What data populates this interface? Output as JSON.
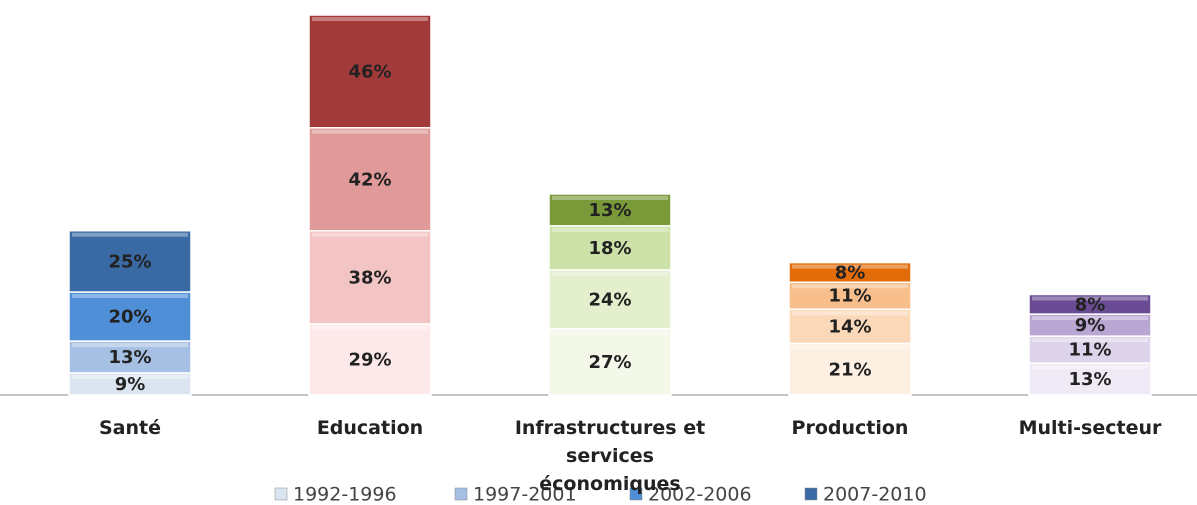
{
  "chart_data": {
    "type": "stacked-bar",
    "categories": [
      "Santé",
      "Education",
      "Infrastructures et services économiques",
      "Production",
      "Multi-secteur"
    ],
    "series": [
      {
        "name": "1992-1996",
        "color": "#dbe5f1",
        "colors": [
          "#dbe5f1",
          "#fde9e9",
          "#f3f8e8",
          "#fdf0e2",
          "#efeaf5"
        ],
        "values": [
          9,
          29,
          27,
          21,
          13
        ],
        "value_labels": [
          "9%",
          "29%",
          "27%",
          "21%",
          "13%"
        ]
      },
      {
        "name": "1997-2001",
        "color": "#a6c0e4",
        "colors": [
          "#a6c0e4",
          "#f2c4c4",
          "#e3efcd",
          "#fbd9b8",
          "#ddd3ea"
        ],
        "values": [
          13,
          38,
          24,
          14,
          11
        ],
        "value_labels": [
          "13%",
          "38%",
          "24%",
          "14%",
          "11%"
        ]
      },
      {
        "name": "2002-2006",
        "color": "#4f8fd8",
        "colors": [
          "#4f8fd8",
          "#e19a9a",
          "#cde2a8",
          "#f8bf8c",
          "#b9a6d2"
        ],
        "values": [
          20,
          42,
          18,
          11,
          9
        ],
        "value_labels": [
          "20%",
          "42%",
          "18%",
          "11%",
          "9%"
        ]
      },
      {
        "name": "2007-2010",
        "color": "#3a6aa4",
        "colors": [
          "#3a6aa4",
          "#a33a3a",
          "#7a9a3a",
          "#e36c0a",
          "#6a4c94"
        ],
        "values": [
          25,
          46,
          13,
          8,
          8
        ],
        "value_labels": [
          "25%",
          "46%",
          "13%",
          "8%",
          "8%"
        ]
      }
    ],
    "legend": "bottom"
  }
}
